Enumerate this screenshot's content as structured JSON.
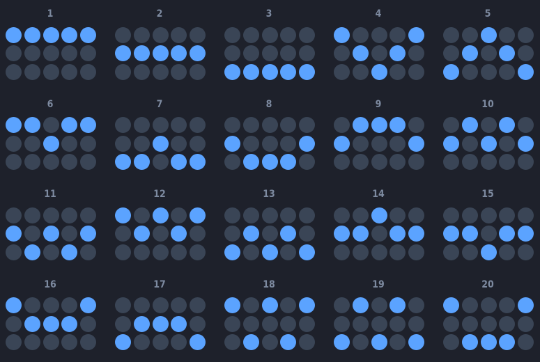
{
  "colors": {
    "background": "#1e212b",
    "inactive": "#3a4556",
    "active": "#5ba3ff",
    "label": "#7d8aa0"
  },
  "patterns": [
    {
      "label": "1",
      "rows": [
        "11111",
        "00000",
        "00000"
      ]
    },
    {
      "label": "2",
      "rows": [
        "00000",
        "11111",
        "00000"
      ]
    },
    {
      "label": "3",
      "rows": [
        "00000",
        "00000",
        "11111"
      ]
    },
    {
      "label": "4",
      "rows": [
        "10001",
        "01010",
        "00100"
      ]
    },
    {
      "label": "5",
      "rows": [
        "00100",
        "01010",
        "10001"
      ]
    },
    {
      "label": "6",
      "rows": [
        "11011",
        "00100",
        "00000"
      ]
    },
    {
      "label": "7",
      "rows": [
        "00000",
        "00100",
        "11011"
      ]
    },
    {
      "label": "8",
      "rows": [
        "00000",
        "10001",
        "01110"
      ]
    },
    {
      "label": "9",
      "rows": [
        "01110",
        "10001",
        "00000"
      ]
    },
    {
      "label": "10",
      "rows": [
        "01010",
        "10101",
        "00000"
      ]
    },
    {
      "label": "11",
      "rows": [
        "00000",
        "10101",
        "01010"
      ]
    },
    {
      "label": "12",
      "rows": [
        "10101",
        "01010",
        "00000"
      ]
    },
    {
      "label": "13",
      "rows": [
        "00000",
        "01010",
        "10101"
      ]
    },
    {
      "label": "14",
      "rows": [
        "00100",
        "11011",
        "00000"
      ]
    },
    {
      "label": "15",
      "rows": [
        "00000",
        "11011",
        "00100"
      ]
    },
    {
      "label": "16",
      "rows": [
        "10001",
        "01110",
        "00000"
      ]
    },
    {
      "label": "17",
      "rows": [
        "00000",
        "01110",
        "10001"
      ]
    },
    {
      "label": "18",
      "rows": [
        "10101",
        "00000",
        "01010"
      ]
    },
    {
      "label": "19",
      "rows": [
        "01010",
        "00000",
        "10101"
      ]
    },
    {
      "label": "20",
      "rows": [
        "10001",
        "00000",
        "01110"
      ]
    }
  ]
}
